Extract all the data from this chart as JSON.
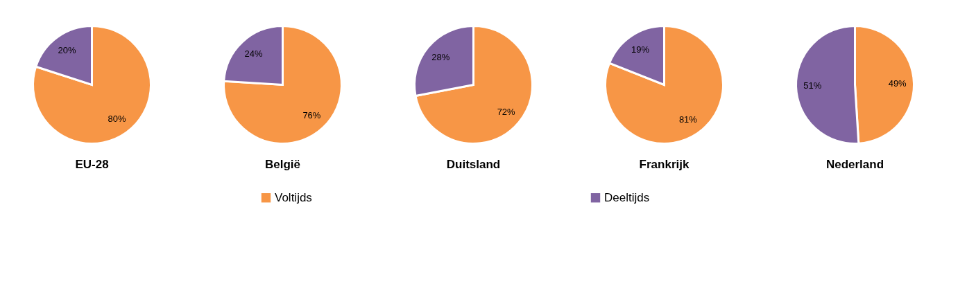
{
  "chart_data": [
    {
      "type": "pie",
      "title": "EU-28",
      "categories": [
        "Voltijds",
        "Deeltijds"
      ],
      "values": [
        80,
        20
      ],
      "colors": [
        "#f79646",
        "#8064a2"
      ],
      "value_labels": [
        "80%",
        "20%"
      ],
      "legend": "bottom"
    },
    {
      "type": "pie",
      "title": "België",
      "categories": [
        null,
        null
      ],
      "values": [
        76,
        24
      ],
      "colors": [
        "#f79646",
        "#8064a2"
      ],
      "value_labels": [
        "76%",
        "24%"
      ]
    },
    {
      "type": "pie",
      "title": "Duitsland",
      "categories": [
        null,
        null
      ],
      "values": [
        72,
        28
      ],
      "colors": [
        "#f79646",
        "#8064a2"
      ],
      "value_labels": [
        "72%",
        "28%"
      ]
    },
    {
      "type": "pie",
      "title": "Frankrijk",
      "categories": [
        null,
        null
      ],
      "values": [
        81,
        19
      ],
      "colors": [
        "#f79646",
        "#8064a2"
      ],
      "value_labels": [
        "81%",
        "19%"
      ]
    },
    {
      "type": "pie",
      "title": "Nederland",
      "categories": [
        null,
        null
      ],
      "values": [
        49,
        51
      ],
      "colors": [
        "#f79646",
        "#8064a2"
      ],
      "value_labels": [
        "49%",
        "51%"
      ]
    }
  ]
}
